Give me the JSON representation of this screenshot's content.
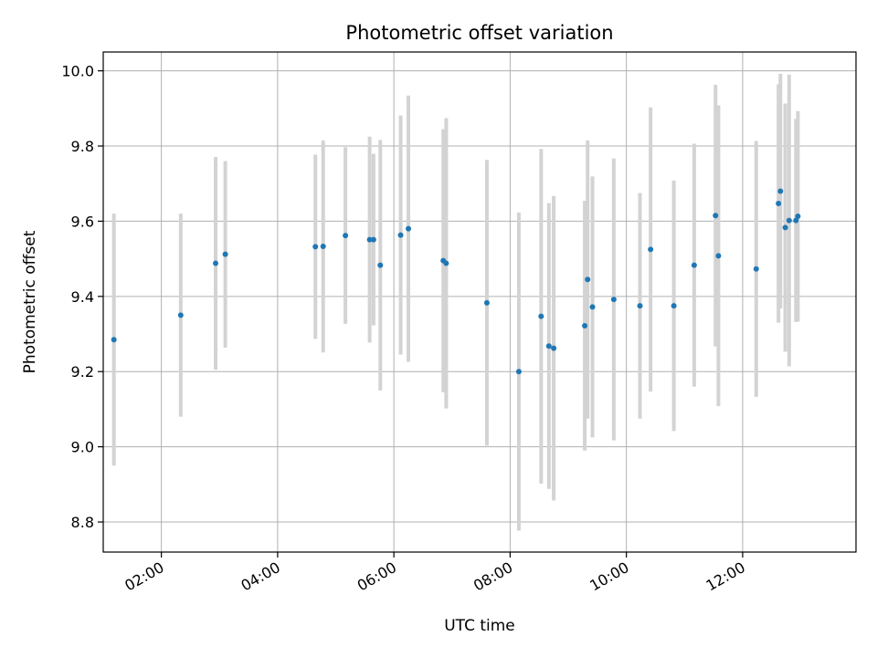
{
  "chart_data": {
    "type": "scatter",
    "title": "Photometric offset variation",
    "xlabel": "UTC time",
    "ylabel": "Photometric offset",
    "x_ticks": [
      "02:00",
      "04:00",
      "06:00",
      "08:00",
      "10:00",
      "12:00"
    ],
    "y_ticks": [
      "8.8",
      "9.0",
      "9.2",
      "9.4",
      "9.6",
      "9.8",
      "10.0"
    ],
    "xlim": [
      "01:00",
      "13:57"
    ],
    "ylim": [
      8.72,
      10.05
    ],
    "grid": true,
    "legend": "none",
    "colors": {
      "point": "#1f77b4",
      "errorbar": "#d3d3d3",
      "grid": "#b0b0b0"
    },
    "series": [
      {
        "points": [
          {
            "x": "01:11",
            "y": 9.285,
            "err": 0.335
          },
          {
            "x": "02:20",
            "y": 9.35,
            "err": 0.27
          },
          {
            "x": "02:56",
            "y": 9.488,
            "err": 0.283
          },
          {
            "x": "03:06",
            "y": 9.512,
            "err": 0.248
          },
          {
            "x": "04:39",
            "y": 9.532,
            "err": 0.245
          },
          {
            "x": "04:47",
            "y": 9.533,
            "err": 0.282
          },
          {
            "x": "05:10",
            "y": 9.562,
            "err": 0.235
          },
          {
            "x": "05:35",
            "y": 9.551,
            "err": 0.274
          },
          {
            "x": "05:39",
            "y": 9.551,
            "err": 0.228
          },
          {
            "x": "05:46",
            "y": 9.483,
            "err": 0.333
          },
          {
            "x": "06:07",
            "y": 9.563,
            "err": 0.318
          },
          {
            "x": "06:15",
            "y": 9.58,
            "err": 0.354
          },
          {
            "x": "06:51",
            "y": 9.495,
            "err": 0.35
          },
          {
            "x": "06:54",
            "y": 9.488,
            "err": 0.386
          },
          {
            "x": "07:36",
            "y": 9.383,
            "err": 0.38
          },
          {
            "x": "08:09",
            "y": 9.2,
            "err": 0.423
          },
          {
            "x": "08:32",
            "y": 9.347,
            "err": 0.445
          },
          {
            "x": "08:40",
            "y": 9.268,
            "err": 0.38
          },
          {
            "x": "08:45",
            "y": 9.262,
            "err": 0.405
          },
          {
            "x": "09:17",
            "y": 9.322,
            "err": 0.332
          },
          {
            "x": "09:20",
            "y": 9.445,
            "err": 0.37
          },
          {
            "x": "09:25",
            "y": 9.372,
            "err": 0.347
          },
          {
            "x": "09:47",
            "y": 9.392,
            "err": 0.375
          },
          {
            "x": "10:14",
            "y": 9.375,
            "err": 0.3
          },
          {
            "x": "10:25",
            "y": 9.525,
            "err": 0.378
          },
          {
            "x": "10:49",
            "y": 9.375,
            "err": 0.333
          },
          {
            "x": "11:10",
            "y": 9.483,
            "err": 0.323
          },
          {
            "x": "11:32",
            "y": 9.615,
            "err": 0.348
          },
          {
            "x": "11:35",
            "y": 9.508,
            "err": 0.4
          },
          {
            "x": "12:14",
            "y": 9.473,
            "err": 0.34
          },
          {
            "x": "12:37",
            "y": 9.647,
            "err": 0.317
          },
          {
            "x": "12:39",
            "y": 9.68,
            "err": 0.312
          },
          {
            "x": "12:44",
            "y": 9.583,
            "err": 0.33
          },
          {
            "x": "12:48",
            "y": 9.602,
            "err": 0.388
          },
          {
            "x": "12:55",
            "y": 9.602,
            "err": 0.27
          },
          {
            "x": "12:57",
            "y": 9.613,
            "err": 0.28
          }
        ]
      }
    ]
  }
}
